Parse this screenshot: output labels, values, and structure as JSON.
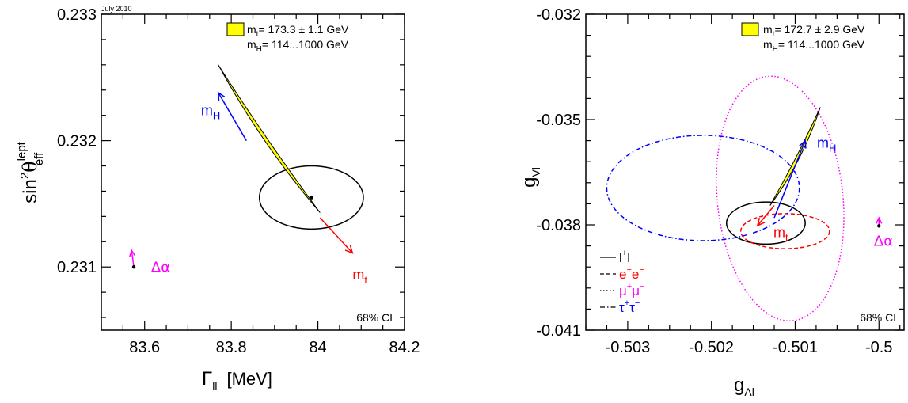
{
  "note": "July 2010",
  "chart_data": [
    {
      "type": "scatter",
      "xlabel": "Γ",
      "xlabel_sub": "ll",
      "xlabel_unit": "[MeV]",
      "ylabel": "sin",
      "ylabel_sup": "2",
      "ylabel_theta": "θ",
      "ylabel_theta_sup": "lept",
      "ylabel_theta_sub": "eff",
      "xlim": [
        83.5,
        84.2
      ],
      "ylim": [
        0.2305,
        0.233
      ],
      "x_ticks": [
        {
          "v": 83.6,
          "label": "83.6"
        },
        {
          "v": 83.8,
          "label": "83.8"
        },
        {
          "v": 84.0,
          "label": "84"
        },
        {
          "v": 84.2,
          "label": "84.2"
        }
      ],
      "y_ticks": [
        {
          "v": 0.231,
          "label": "0.231"
        },
        {
          "v": 0.232,
          "label": "0.232"
        },
        {
          "v": 0.233,
          "label": "0.233"
        }
      ],
      "legend": {
        "line1_prefix": "m",
        "line1_sub": "t",
        "line1_text": "= 173.3 ± 1.1 GeV",
        "line2_prefix": "m",
        "line2_sub": "H",
        "line2_text": "= 114...1000 GeV",
        "swatch_color": "#ffff00"
      },
      "cl_label": "68% CL",
      "ellipse": {
        "cx": 83.985,
        "cy": 0.23155,
        "rx": 0.12,
        "ry": 0.00025,
        "color": "#000000"
      },
      "central_point": {
        "x": 83.985,
        "y": 0.23155
      },
      "band": {
        "start": [
          83.77,
          0.2326
        ],
        "end": [
          84.005,
          0.23143
        ]
      },
      "mH_arrow": {
        "label_main": "m",
        "label_sub": "H",
        "from": [
          83.835,
          0.232
        ],
        "to": [
          83.77,
          0.23238
        ],
        "color": "#0000ff",
        "label_pos": [
          83.73,
          0.2322
        ]
      },
      "mt_arrow": {
        "label_main": "m",
        "label_sub": "t",
        "from": [
          84.005,
          0.23139
        ],
        "to": [
          84.08,
          0.23111
        ],
        "color": "#ff0000",
        "label_pos": [
          84.08,
          0.2309
        ]
      },
      "da_arrow": {
        "label": "Δα",
        "from": [
          83.575,
          0.231
        ],
        "to": [
          83.57,
          0.23113
        ],
        "color": "#ff00ff",
        "label_pos": [
          83.615,
          0.23096
        ]
      }
    },
    {
      "type": "scatter",
      "xlabel": "g",
      "xlabel_sub": "Al",
      "ylabel": "g",
      "ylabel_sub": "Vl",
      "xlim": [
        -0.5035,
        -0.4997
      ],
      "ylim": [
        -0.041,
        -0.032
      ],
      "x_ticks": [
        {
          "v": -0.503,
          "label": "-0.503"
        },
        {
          "v": -0.502,
          "label": "-0.502"
        },
        {
          "v": -0.501,
          "label": "-0.501"
        },
        {
          "v": -0.5,
          "label": "-0.5"
        }
      ],
      "y_ticks": [
        {
          "v": -0.041,
          "label": "-0.041"
        },
        {
          "v": -0.038,
          "label": "-0.038"
        },
        {
          "v": -0.035,
          "label": "-0.035"
        },
        {
          "v": -0.032,
          "label": "-0.032"
        }
      ],
      "legend": {
        "line1_prefix": "m",
        "line1_sub": "t",
        "line1_text": "= 172.7 ± 2.9 GeV",
        "line2_prefix": "m",
        "line2_sub": "H",
        "line2_text": "= 114...1000 GeV",
        "swatch_color": "#ffff00"
      },
      "cl_label": "68% CL",
      "series": [
        {
          "name_base": "l",
          "name_sup1": "+",
          "name_mid": "l",
          "name_sup2": "−",
          "color": "#000000",
          "style": "solid",
          "cx": -0.50135,
          "cy": -0.03795,
          "rx": 0.00047,
          "ry": 0.0006
        },
        {
          "name_base": "e",
          "name_sup1": "+",
          "name_mid": "e",
          "name_sup2": "−",
          "color": "#ff0000",
          "style": "dashed",
          "cx": -0.50112,
          "cy": -0.03818,
          "rx": 0.00053,
          "ry": 0.0005
        },
        {
          "name_base": "μ",
          "name_sup1": "+",
          "name_mid": "μ",
          "name_sup2": "−",
          "color": "#ff00ff",
          "style": "dotted",
          "cx": -0.50118,
          "cy": -0.03725,
          "rx": 0.00075,
          "ry": 0.0035,
          "rotate": -6
        },
        {
          "name_base": "τ",
          "name_sup1": "+",
          "name_mid": "τ",
          "name_sup2": "−",
          "color": "#0000ff",
          "style": "dashdot",
          "cx": -0.5021,
          "cy": -0.03695,
          "rx": 0.00115,
          "ry": 0.0015
        }
      ],
      "band": {
        "start": [
          -0.5013,
          -0.03745
        ],
        "end": [
          -0.5007,
          -0.03465
        ]
      },
      "mH_arrow": {
        "label_main": "m",
        "label_sub": "H",
        "from": [
          -0.50125,
          -0.0378
        ],
        "to": [
          -0.50088,
          -0.0356
        ],
        "color": "#0000ff",
        "label_pos": [
          -0.50074,
          -0.0358
        ]
      },
      "mt_arrow": {
        "label_main": "m",
        "label_sub": "t",
        "from": [
          -0.50125,
          -0.03745
        ],
        "to": [
          -0.50145,
          -0.03802
        ],
        "color": "#ff0000",
        "label_pos": [
          -0.50126,
          -0.03835
        ]
      },
      "da_arrow": {
        "label": "Δα",
        "from": [
          -0.5,
          -0.03803
        ],
        "to": [
          -0.5,
          -0.0378
        ],
        "color": "#ff00ff",
        "label_pos": [
          -0.50006,
          -0.0386
        ]
      }
    }
  ]
}
